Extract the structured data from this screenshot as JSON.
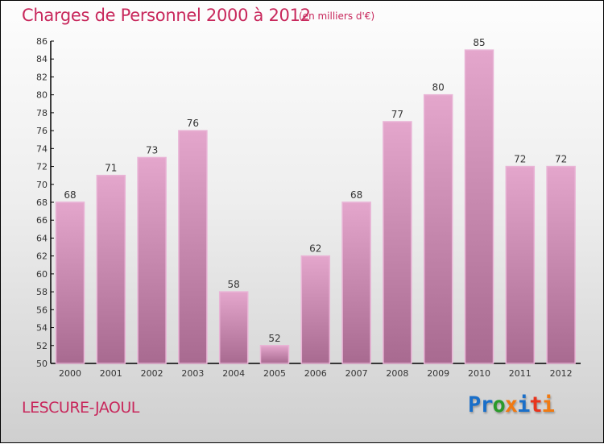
{
  "chart_data": {
    "type": "bar",
    "title": "Charges de Personnel 2000 à 2012",
    "subtitle": "(en milliers d'€)",
    "categories": [
      "2000",
      "2001",
      "2002",
      "2003",
      "2004",
      "2005",
      "2006",
      "2007",
      "2008",
      "2009",
      "2010",
      "2011",
      "2012"
    ],
    "values": [
      68,
      71,
      73,
      76,
      58,
      52,
      62,
      68,
      77,
      80,
      85,
      72,
      72
    ],
    "xlabel": "",
    "ylabel": "",
    "ylim": [
      50,
      86
    ],
    "yticks": [
      50,
      52,
      54,
      56,
      58,
      60,
      62,
      64,
      66,
      68,
      70,
      72,
      74,
      76,
      78,
      80,
      82,
      84,
      86
    ],
    "grid": false,
    "bar_color": "#c07aa6"
  },
  "commune": "LESCURE-JAOUL",
  "logo": {
    "letters": [
      "P",
      "r",
      "o",
      "x",
      "i",
      "t",
      "i"
    ],
    "colors": [
      "#1a6fc9",
      "#1a6fc9",
      "#2a9a2a",
      "#f07a12",
      "#1a6fc9",
      "#e8341c",
      "#f07a12"
    ]
  }
}
